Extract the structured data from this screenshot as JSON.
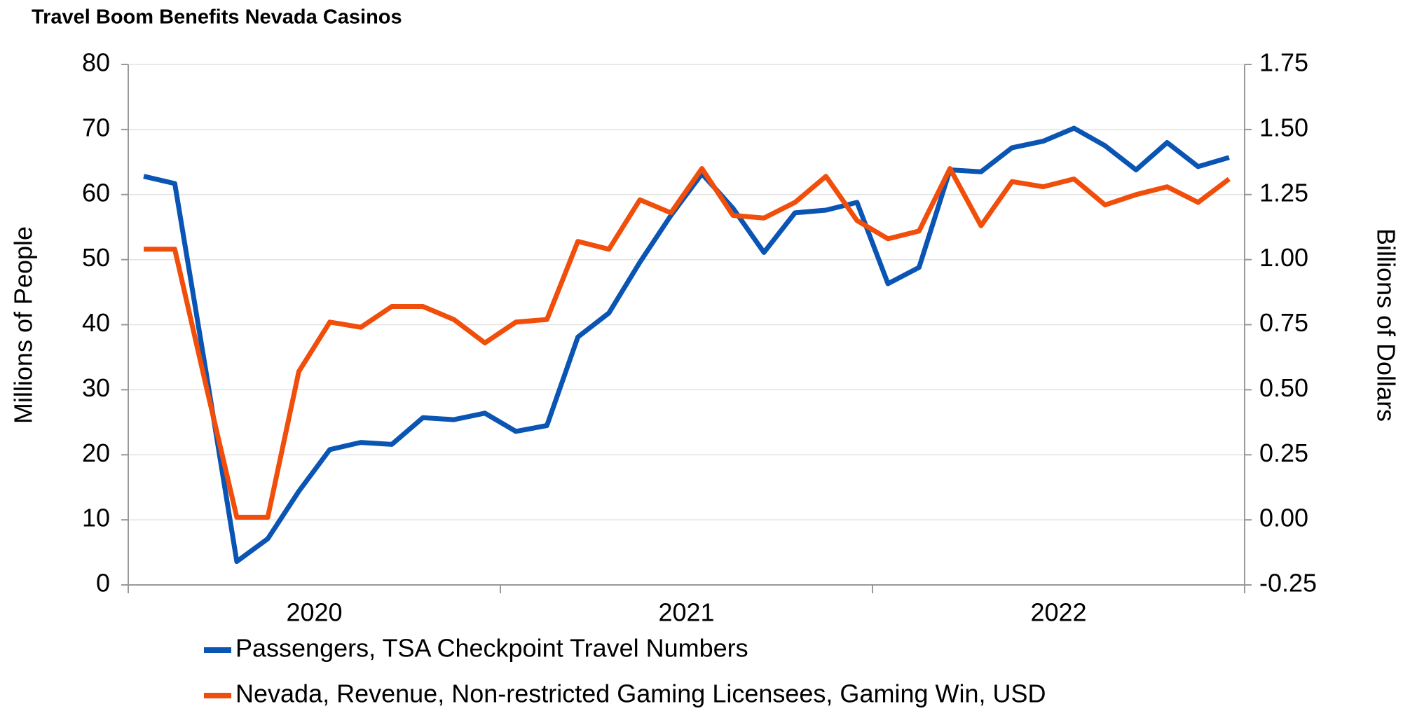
{
  "chart_data": {
    "type": "line",
    "title": "Travel Boom Benefits Nevada Casinos",
    "ylabel": "Millions of People",
    "y2label": "Billions of Dollars",
    "categories": [
      null,
      null,
      null,
      null,
      null,
      null,
      null,
      null,
      null,
      null,
      null,
      null,
      null,
      null,
      null,
      null,
      null,
      null,
      null,
      null,
      null,
      null,
      null,
      null,
      null,
      null,
      null,
      null,
      null,
      null,
      null,
      null,
      null,
      null,
      null,
      null
    ],
    "xticklabels": [
      "2020",
      "2021",
      "2022"
    ],
    "ylim": [
      0,
      80
    ],
    "yticks": [
      0,
      10,
      20,
      30,
      40,
      50,
      60,
      70,
      80
    ],
    "y2lim": [
      -0.25,
      1.75
    ],
    "y2ticks": [
      -0.25,
      {
        "value": 0,
        "label": "0.00"
      },
      0.25,
      {
        "value": 0.5,
        "label": "0.50"
      },
      0.75,
      {
        "value": 1,
        "label": "1.00"
      },
      1.25,
      {
        "value": 1.5,
        "label": "1.50"
      },
      1.75
    ],
    "grid": true,
    "series": [
      {
        "name": "Passengers, TSA Checkpoint Travel Numbers",
        "color": "#0a55b3",
        "values": [
          62.8,
          61.7,
          33,
          3.6,
          7.1,
          14.4,
          20.8,
          21.9,
          21.6,
          25.7,
          25.4,
          26.4,
          23.6,
          24.5,
          38.1,
          41.8,
          49.6,
          56.8,
          63.2,
          57.9,
          51.1,
          57.2,
          57.6,
          58.8,
          46.3,
          48.8,
          63.8,
          63.5,
          67.2,
          68.2,
          70.2,
          67.5,
          63.8,
          68.0,
          64.3,
          65.7
        ]
      },
      {
        "name": "Nevada, Revenue, Non-restricted Gaming Licensees, Gaming Win, USD",
        "color": "#f04e0a",
        "axis": "y2",
        "values": [
          1.04,
          1.04,
          0.52,
          0.01,
          0.01,
          0.57,
          0.76,
          0.74,
          0.82,
          0.82,
          0.77,
          0.68,
          0.76,
          0.77,
          1.07,
          1.04,
          1.23,
          1.18,
          1.35,
          1.17,
          1.16,
          1.22,
          1.32,
          1.15,
          1.08,
          1.11,
          1.35,
          1.13,
          1.3,
          1.28,
          1.31,
          1.21,
          1.25,
          1.28,
          1.22,
          1.31
        ]
      }
    ]
  }
}
